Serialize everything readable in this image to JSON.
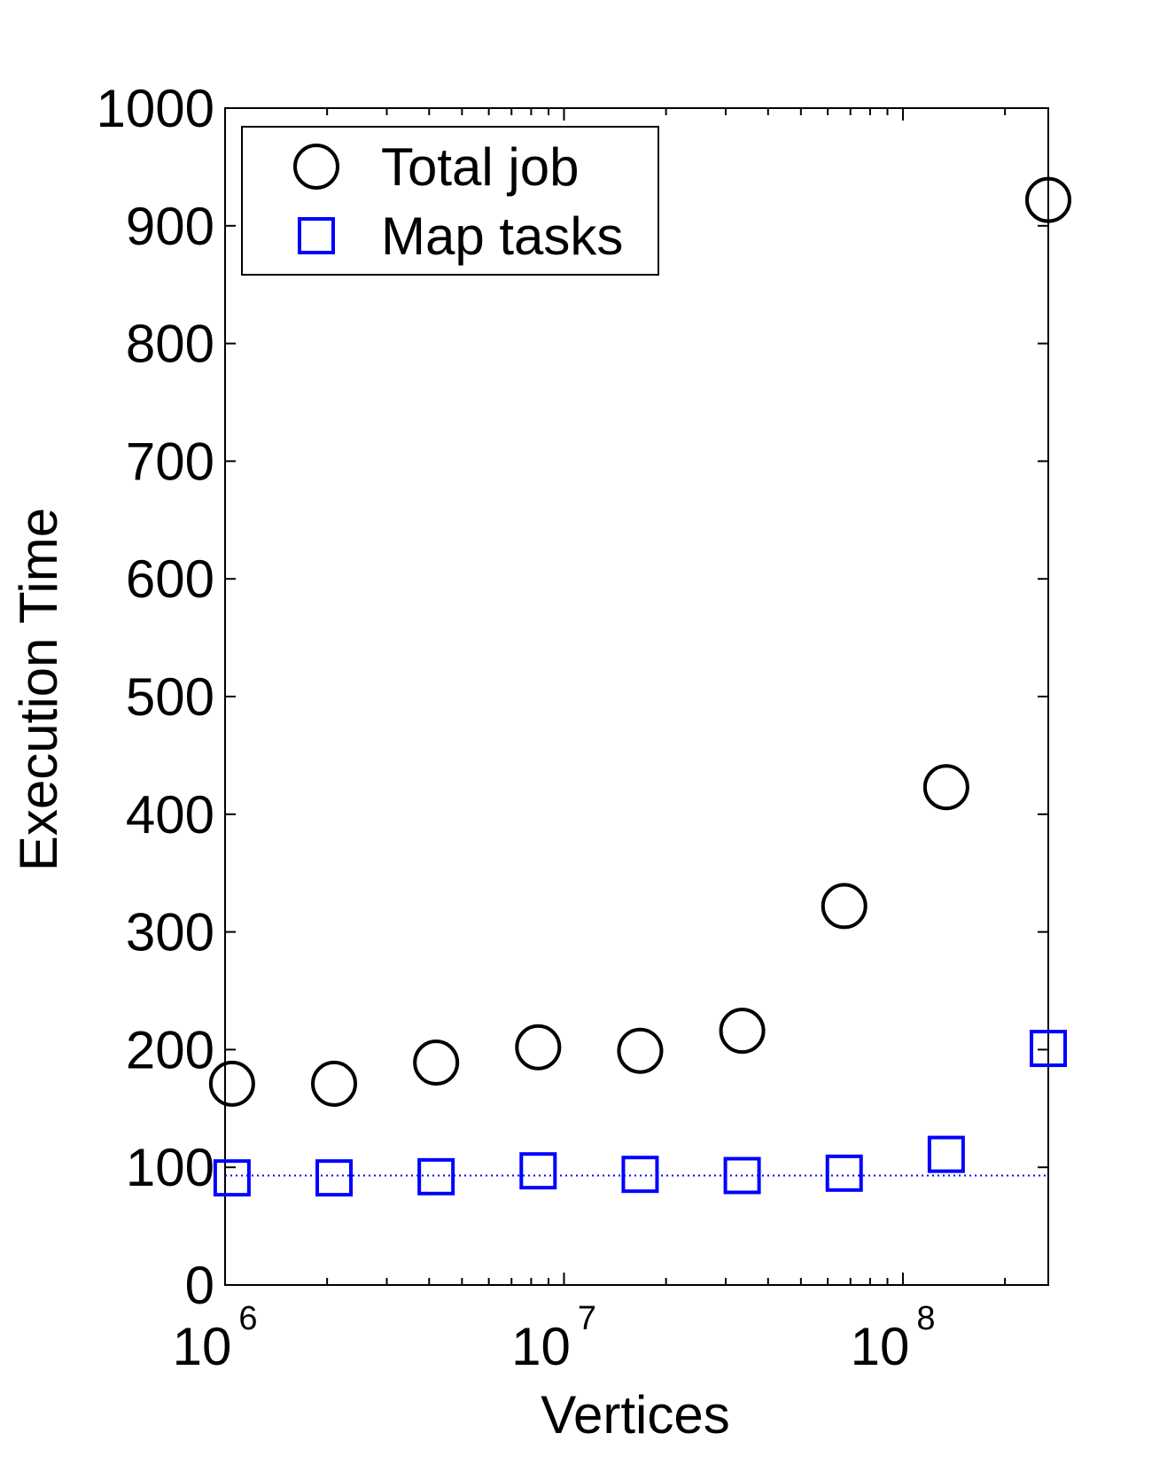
{
  "chart_data": {
    "type": "scatter",
    "title": "",
    "xlabel": "Vertices",
    "ylabel": "Execution Time",
    "xscale": "log",
    "xlim": [
      1000000,
      268435456
    ],
    "ylim": [
      0,
      1000
    ],
    "yticks": [
      0,
      100,
      200,
      300,
      400,
      500,
      600,
      700,
      800,
      900,
      1000
    ],
    "xticks": [
      {
        "value": 1000000,
        "base": "10",
        "exp": "6"
      },
      {
        "value": 10000000,
        "base": "10",
        "exp": "7"
      },
      {
        "value": 100000000,
        "base": "10",
        "exp": "8"
      }
    ],
    "grid": false,
    "legend_position": "top-left",
    "series": [
      {
        "name": "Total job",
        "marker": "circle",
        "color": "#000000",
        "x": [
          1048576,
          2097152,
          4194304,
          8388608,
          16777216,
          33554432,
          67108864,
          134217728,
          268435456
        ],
        "y": [
          171,
          171,
          189,
          202,
          199,
          216,
          322,
          423,
          922
        ]
      },
      {
        "name": "Map tasks",
        "marker": "square",
        "color": "#0000ff",
        "x": [
          1048576,
          2097152,
          4194304,
          8388608,
          16777216,
          33554432,
          67108864,
          134217728,
          268435456
        ],
        "y": [
          91,
          91,
          92,
          97,
          94,
          93,
          95,
          111,
          201
        ]
      }
    ],
    "reference_line": {
      "y": 93,
      "color": "#0000ff",
      "style": "dotted"
    }
  }
}
